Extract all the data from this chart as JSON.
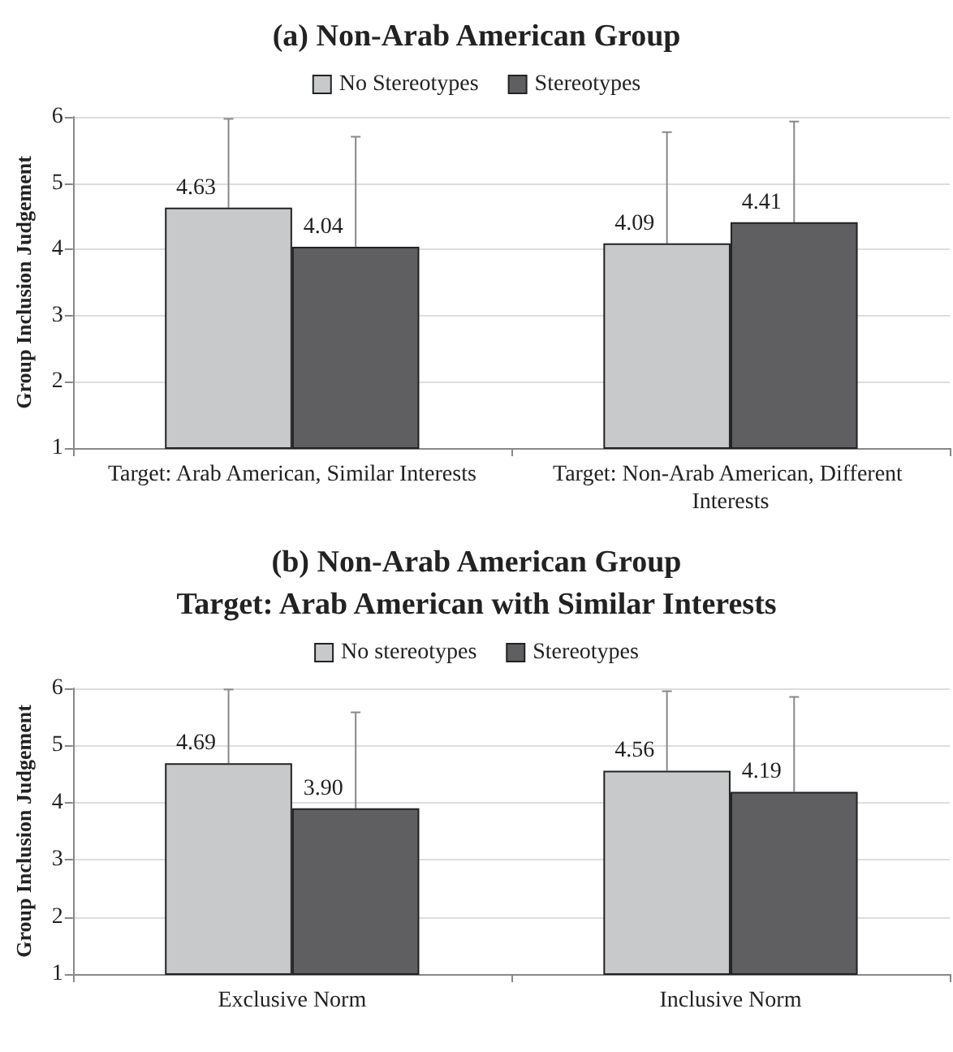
{
  "chart_data": [
    {
      "type": "bar",
      "title": "(a) Non-Arab American Group",
      "ylabel": "Group Inclusion Judgement",
      "categories": [
        "Target: Arab American, Similar Interests",
        "Target: Non-Arab American, Different Interests"
      ],
      "series": [
        {
          "name": "No Stereotypes",
          "color": "#c8c9cb",
          "values": [
            4.63,
            4.09
          ],
          "value_labels": [
            "4.63",
            "4.09"
          ],
          "errors": [
            [
              4.63,
              5.97
            ],
            [
              4.09,
              5.77
            ]
          ]
        },
        {
          "name": "Stereotypes",
          "color": "#5f5f62",
          "values": [
            4.04,
            4.41
          ],
          "value_labels": [
            "4.04",
            "4.41"
          ],
          "errors": [
            [
              4.04,
              5.7
            ],
            [
              4.41,
              5.93
            ]
          ]
        }
      ],
      "ylim": [
        1,
        6
      ],
      "yticks": [
        1,
        2,
        3,
        4,
        5,
        6
      ],
      "grid": "y",
      "legend": "top"
    },
    {
      "type": "bar",
      "title": "(b) Non-Arab American Group",
      "subtitle": "Target: Arab American with Similar Interests",
      "ylabel": "Group Inclusion Judgement",
      "categories": [
        "Exclusive Norm",
        "Inclusive Norm"
      ],
      "series": [
        {
          "name": "No stereotypes",
          "color": "#c8c9cb",
          "values": [
            4.69,
            4.56
          ],
          "value_labels": [
            "4.69",
            "4.56"
          ],
          "errors": [
            [
              4.69,
              5.98
            ],
            [
              4.56,
              5.95
            ]
          ]
        },
        {
          "name": "Stereotypes",
          "color": "#5f5f62",
          "values": [
            3.9,
            4.19
          ],
          "value_labels": [
            "3.90",
            "4.19"
          ],
          "errors": [
            [
              3.9,
              5.58
            ],
            [
              4.19,
              5.85
            ]
          ]
        }
      ],
      "ylim": [
        1,
        6
      ],
      "yticks": [
        1,
        2,
        3,
        4,
        5,
        6
      ],
      "grid": "y",
      "legend": "top"
    }
  ]
}
